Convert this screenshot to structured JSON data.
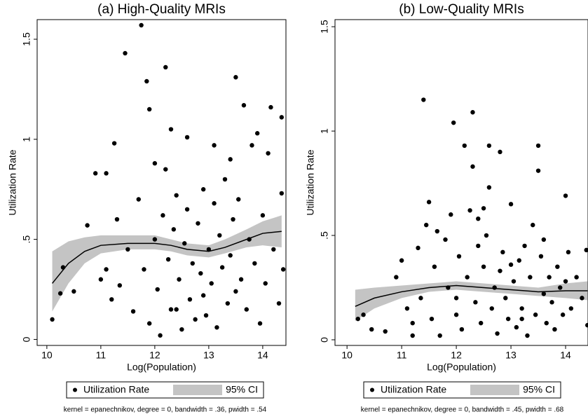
{
  "chart_data": [
    {
      "type": "scatter",
      "title": "(a) High-Quality MRIs",
      "xlabel": "Log(Population)",
      "ylabel": "Utilization Rate",
      "xlim": [
        9.82,
        14.43
      ],
      "ylim": [
        -0.03,
        1.598
      ],
      "xticks": [
        10,
        11,
        12,
        13,
        14
      ],
      "yticks": [
        0,
        {
          "value": 0.5,
          "label": ".5"
        },
        1,
        1.5
      ],
      "series": [
        {
          "name": "Utilization Rate",
          "color": "#000000",
          "x": [
            10.1,
            10.25,
            10.3,
            10.5,
            10.75,
            10.9,
            11.1,
            11.25,
            11.45,
            11.75,
            11.85,
            11.9,
            12.2,
            13.5,
            13.65,
            13.9,
            14.15,
            14.35,
            12.3,
            12.6,
            13.1,
            13.8,
            14.1,
            11.0,
            11.1,
            11.2,
            11.3,
            11.35,
            11.5,
            11.6,
            11.7,
            11.8,
            11.9,
            12.0,
            12.05,
            12.1,
            12.15,
            12.2,
            12.25,
            12.3,
            12.35,
            12.4,
            12.45,
            12.5,
            12.55,
            12.6,
            12.65,
            12.7,
            12.75,
            12.8,
            12.85,
            12.9,
            12.95,
            13.0,
            13.05,
            13.1,
            13.15,
            13.2,
            13.25,
            13.3,
            13.35,
            13.4,
            13.45,
            13.5,
            13.55,
            13.6,
            13.7,
            13.75,
            13.85,
            13.95,
            14.0,
            14.05,
            14.2,
            14.3,
            14.35,
            14.38,
            12.0,
            12.4,
            12.9,
            13.4
          ],
          "values": [
            0.1,
            0.23,
            0.36,
            0.24,
            0.57,
            0.83,
            0.83,
            0.98,
            1.43,
            1.57,
            1.29,
            1.15,
            1.36,
            1.31,
            1.17,
            1.03,
            1.16,
            1.11,
            1.05,
            1.01,
            0.97,
            0.97,
            0.93,
            0.3,
            0.35,
            0.2,
            0.6,
            0.27,
            0.45,
            0.14,
            0.7,
            0.35,
            0.08,
            0.5,
            0.25,
            0.02,
            0.62,
            0.85,
            0.4,
            0.15,
            0.55,
            0.72,
            0.3,
            0.05,
            0.48,
            0.65,
            0.2,
            0.38,
            0.1,
            0.58,
            0.33,
            0.75,
            0.12,
            0.45,
            0.28,
            0.68,
            0.06,
            0.52,
            0.36,
            0.8,
            0.18,
            0.42,
            0.6,
            0.24,
            0.7,
            0.3,
            0.15,
            0.5,
            0.38,
            0.08,
            0.62,
            0.28,
            0.45,
            0.18,
            0.73,
            0.35,
            0.88,
            0.15,
            0.22,
            0.9
          ]
        }
      ],
      "fit": {
        "color": "#000000",
        "x": [
          10.1,
          10.4,
          10.7,
          11,
          11.5,
          12,
          12.3,
          12.6,
          13,
          13.3,
          13.7,
          14,
          14.35
        ],
        "values": [
          0.28,
          0.38,
          0.44,
          0.47,
          0.48,
          0.48,
          0.47,
          0.45,
          0.44,
          0.46,
          0.5,
          0.53,
          0.54
        ]
      },
      "ci": {
        "name": "95% CI",
        "color": "#c4c4c4",
        "x": [
          10.1,
          10.4,
          10.7,
          11,
          11.5,
          12,
          12.3,
          12.6,
          13,
          13.3,
          13.7,
          14,
          14.35
        ],
        "lower": [
          0.14,
          0.28,
          0.38,
          0.43,
          0.45,
          0.45,
          0.44,
          0.42,
          0.41,
          0.43,
          0.46,
          0.47,
          0.46
        ],
        "upper": [
          0.44,
          0.49,
          0.51,
          0.52,
          0.52,
          0.52,
          0.5,
          0.48,
          0.47,
          0.5,
          0.55,
          0.59,
          0.62
        ]
      },
      "note": "kernel = epanechnikov, degree = 0, bandwidth = .36, pwidth = .54"
    },
    {
      "type": "scatter",
      "title": "(b) Low-Quality MRIs",
      "xlabel": "Log(Population)",
      "ylabel": "Utilization Rate",
      "xlim": [
        9.78,
        14.41
      ],
      "ylim": [
        -0.027,
        1.534
      ],
      "xticks": [
        10,
        11,
        12,
        13,
        14
      ],
      "yticks": [
        0,
        {
          "value": 0.5,
          "label": ".5"
        },
        1,
        1.5
      ],
      "series": [
        {
          "name": "Utilization Rate",
          "color": "#000000",
          "x": [
            11.4,
            12.3,
            11.95,
            12.15,
            12.6,
            13.5,
            12.8,
            12.3,
            13.5,
            14.0,
            12.6,
            11.5,
            10.2,
            10.3,
            10.45,
            10.7,
            10.9,
            11.0,
            11.1,
            11.2,
            11.3,
            11.35,
            11.45,
            11.55,
            11.6,
            11.7,
            11.8,
            11.85,
            11.9,
            12.0,
            12.05,
            12.1,
            12.2,
            12.25,
            12.35,
            12.4,
            12.45,
            12.5,
            12.55,
            12.65,
            12.7,
            12.75,
            12.85,
            12.9,
            12.95,
            13.0,
            13.05,
            13.1,
            13.15,
            13.2,
            13.25,
            13.3,
            13.35,
            13.4,
            13.45,
            13.55,
            13.6,
            13.65,
            13.7,
            13.75,
            13.8,
            13.85,
            13.9,
            13.95,
            14.05,
            14.1,
            14.2,
            14.3,
            14.38,
            14.4,
            11.65,
            12.0,
            12.4,
            12.8,
            13.2,
            13.6,
            14.0,
            11.2,
            12.5,
            13.0
          ],
          "values": [
            1.15,
            1.09,
            1.04,
            0.93,
            0.93,
            0.93,
            0.9,
            0.83,
            0.81,
            0.69,
            0.73,
            0.66,
            0.1,
            0.12,
            0.05,
            0.04,
            0.3,
            0.38,
            0.15,
            0.08,
            0.44,
            0.2,
            0.55,
            0.1,
            0.35,
            0.02,
            0.48,
            0.25,
            0.6,
            0.12,
            0.4,
            0.05,
            0.3,
            0.62,
            0.18,
            0.45,
            0.08,
            0.35,
            0.5,
            0.15,
            0.25,
            0.03,
            0.42,
            0.2,
            0.1,
            0.65,
            0.28,
            0.06,
            0.38,
            0.15,
            0.45,
            0.02,
            0.3,
            0.55,
            0.12,
            0.4,
            0.22,
            0.08,
            0.3,
            0.18,
            0.05,
            0.35,
            0.25,
            0.12,
            0.42,
            0.15,
            0.3,
            0.2,
            0.43,
            0.07,
            0.52,
            0.2,
            0.58,
            0.33,
            0.1,
            0.48,
            0.28,
            0.02,
            0.63,
            0.36
          ]
        }
      ],
      "fit": {
        "color": "#000000",
        "x": [
          10.15,
          10.5,
          11,
          11.5,
          12,
          12.5,
          13,
          13.5,
          14,
          14.4
        ],
        "values": [
          0.16,
          0.2,
          0.23,
          0.25,
          0.26,
          0.25,
          0.24,
          0.23,
          0.235,
          0.235
        ]
      },
      "ci": {
        "name": "95% CI",
        "color": "#c4c4c4",
        "x": [
          10.15,
          10.5,
          11,
          11.5,
          12,
          12.5,
          13,
          13.5,
          14,
          14.4
        ],
        "lower": [
          0.09,
          0.15,
          0.2,
          0.23,
          0.24,
          0.23,
          0.22,
          0.21,
          0.2,
          0.19
        ],
        "upper": [
          0.24,
          0.25,
          0.26,
          0.27,
          0.28,
          0.27,
          0.26,
          0.25,
          0.27,
          0.28
        ]
      },
      "note": "kernel = epanechnikov, degree = 0, bandwidth = .45, pwidth = .68"
    }
  ]
}
